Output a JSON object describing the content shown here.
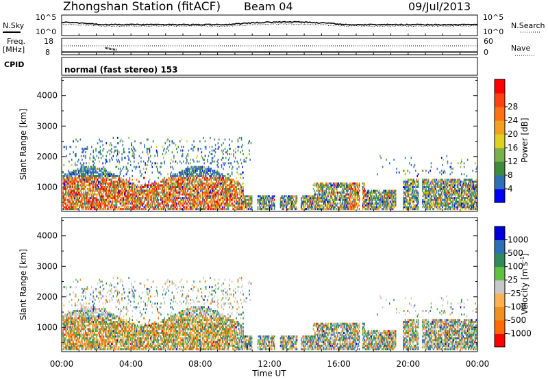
{
  "header": {
    "station": "Zhongshan Station (fitACF)",
    "beam": "Beam 04",
    "date": "09/Jul/2013"
  },
  "noise_panel": {
    "left_label": "N.Sky",
    "left_ticks": [
      "10^5",
      "10^0"
    ],
    "right_label": "N.Search",
    "right_ticks": [
      "10^5",
      "10^0"
    ]
  },
  "freq_panel": {
    "left_label_1": "Freq.",
    "left_label_2": "[MHz]",
    "left_ticks": [
      "18",
      "8"
    ],
    "right_label": "Nave",
    "right_ticks": [
      "60",
      "0"
    ]
  },
  "cpid": {
    "label": "CPID",
    "mode": "normal (fast stereo) 153"
  },
  "colors": {
    "power_scale": [
      "#0000ff",
      "#2e6fb8",
      "#3c8c3c",
      "#78b04a",
      "#e0d020",
      "#f2a020",
      "#ff7010",
      "#ff4010",
      "#ff0000"
    ],
    "velocity_scale": [
      "#ff0000",
      "#ff6a00",
      "#f09020",
      "#ffb050",
      "#c8c8c8",
      "#60c040",
      "#2f8c5a",
      "#2e6fb8",
      "#0000dd"
    ]
  },
  "chart_data": [
    {
      "type": "heatmap",
      "name": "power",
      "ylabel": "Slant Range [km]",
      "yticks": [
        "1000",
        "2000",
        "3000",
        "4000"
      ],
      "ylim": [
        200,
        4600
      ],
      "colorbar_label": "Power [dB]",
      "colorbar_ticks": [
        "4",
        "8",
        "12",
        "16",
        "20",
        "24",
        "28"
      ],
      "colorbar_range": [
        0,
        32
      ]
    },
    {
      "type": "heatmap",
      "name": "velocity",
      "ylabel": "Slant Range [km]",
      "yticks": [
        "1000",
        "2000",
        "3000",
        "4000"
      ],
      "ylim": [
        200,
        4600
      ],
      "colorbar_label": "Velocity [m s",
      "colorbar_label_sup": "-1",
      "colorbar_label_end": "]",
      "colorbar_ticks": [
        "-1000",
        "-500",
        "-100",
        "-25",
        "25",
        "100",
        "500",
        "1000"
      ],
      "xlabel": "Time UT",
      "xticks": [
        "00:00",
        "04:00",
        "08:00",
        "12:00",
        "16:00",
        "20:00",
        "00:00"
      ],
      "xlim_hours": [
        0,
        24
      ]
    }
  ]
}
